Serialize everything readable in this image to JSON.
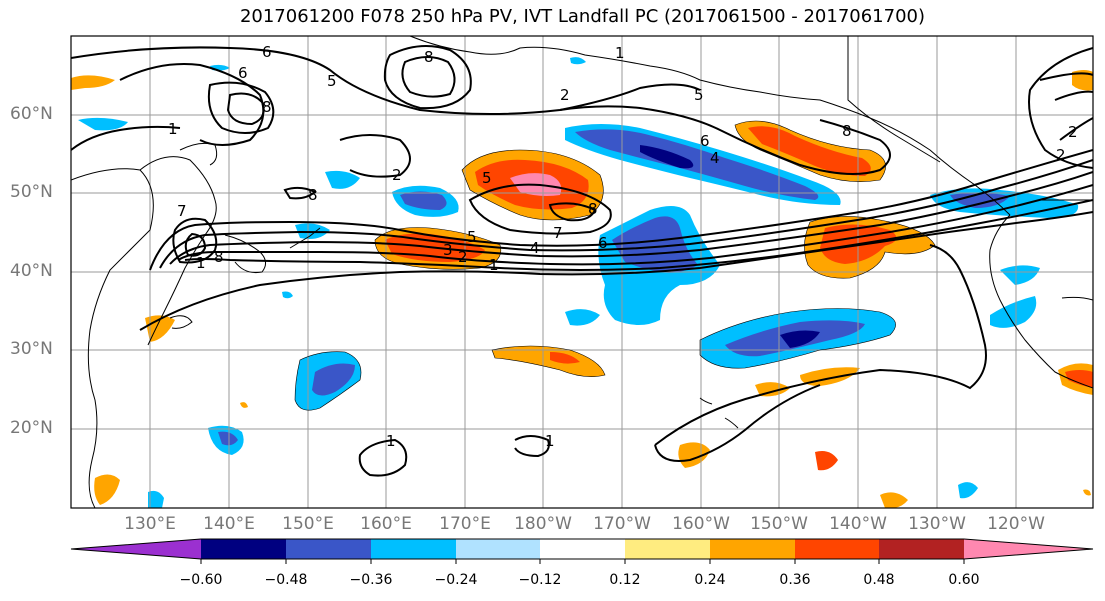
{
  "title": "2017061200 F078 250 hPa PV, IVT Landfall PC (2017061500 - 2017061700)",
  "lat_labels": [
    "60°N",
    "50°N",
    "40°N",
    "30°N",
    "20°N"
  ],
  "lon_labels": [
    "130°E",
    "140°E",
    "150°E",
    "160°E",
    "170°E",
    "180°W",
    "170°W",
    "160°W",
    "150°W",
    "140°W",
    "130°W",
    "120°W"
  ],
  "contour_labels": [
    "1",
    "2",
    "3",
    "4",
    "5",
    "6",
    "7",
    "8"
  ],
  "colorbar": {
    "ticks": [
      "−0.60",
      "−0.48",
      "−0.36",
      "−0.24",
      "−0.12",
      "0.12",
      "0.24",
      "0.36",
      "0.48",
      "0.60"
    ],
    "colors": [
      "#9b30d0",
      "#000080",
      "#3a56c8",
      "#00bfff",
      "#b0e2ff",
      "#ffffff",
      "#ffec80",
      "#ffa500",
      "#ff4500",
      "#b22222",
      "#ff88b0"
    ]
  }
}
